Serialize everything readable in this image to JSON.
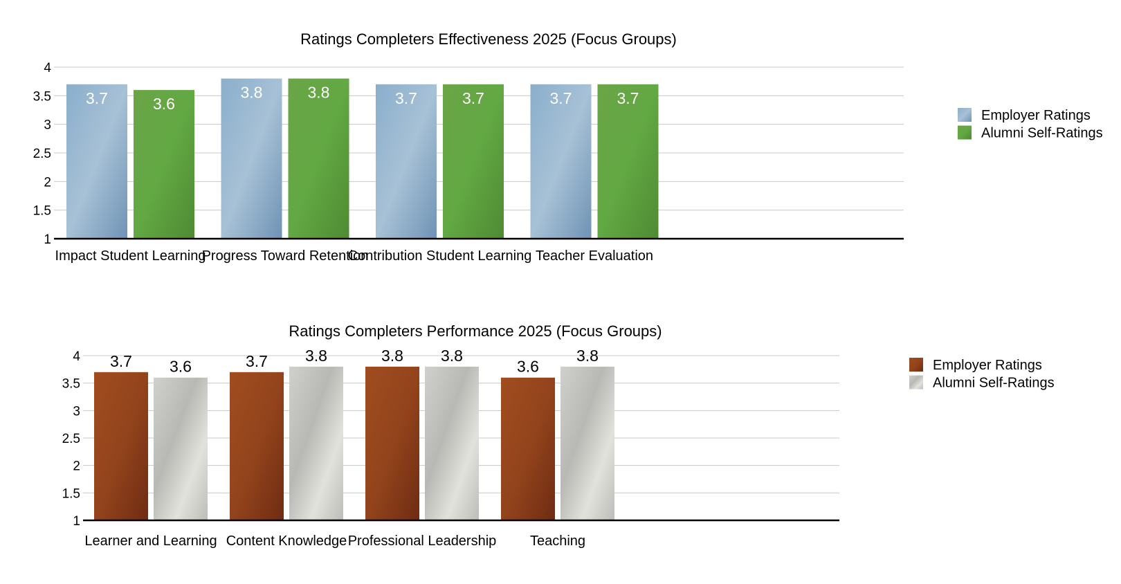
{
  "chart_data": [
    {
      "type": "bar",
      "title": "Ratings Completers Effectiveness 2025 (Focus Groups)",
      "categories": [
        "Impact Student Learning",
        "Progress Toward Retention",
        "Contribution Student Learning",
        "Teacher Evaluation"
      ],
      "series": [
        {
          "name": "Employer Ratings",
          "values": [
            3.7,
            3.8,
            3.7,
            3.7
          ],
          "color": "#7a9ebf"
        },
        {
          "name": "Alumni Self-Ratings",
          "values": [
            3.6,
            3.8,
            3.7,
            3.7
          ],
          "color": "#5e9e3c"
        }
      ],
      "ylim": [
        1,
        4
      ],
      "yticks": [
        "1",
        "1.5",
        "2",
        "2.5",
        "3",
        "3.5",
        "4"
      ],
      "grid": true,
      "legend": "right",
      "data_labels": "inside-top",
      "data_label_color": "#ffffff"
    },
    {
      "type": "bar",
      "title": "Ratings Completers Performance 2025 (Focus Groups)",
      "categories": [
        "Learner and Learning",
        "Content Knowledge",
        "Professional Leadership",
        "Teaching"
      ],
      "series": [
        {
          "name": "Employer Ratings",
          "values": [
            3.7,
            3.7,
            3.8,
            3.6
          ],
          "color": "#8e3f1a"
        },
        {
          "name": "Alumni Self-Ratings",
          "values": [
            3.6,
            3.8,
            3.8,
            3.8
          ],
          "color": "#c4c4c0"
        }
      ],
      "ylim": [
        1,
        4
      ],
      "yticks": [
        "1",
        "1.5",
        "2",
        "2.5",
        "3",
        "3.5",
        "4"
      ],
      "grid": true,
      "legend": "right",
      "data_labels": "above",
      "data_label_color": "#000000"
    }
  ]
}
